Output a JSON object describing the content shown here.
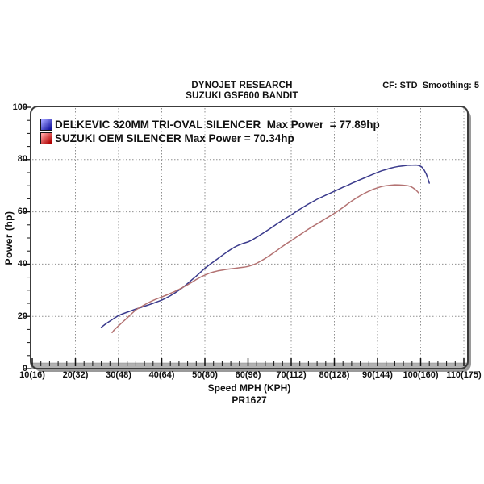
{
  "header": {
    "line1": "DYNOJET RESEARCH",
    "line2": "SUZUKI GSF600 BANDIT",
    "right": "CF: STD  Smoothing: 5"
  },
  "legend": [
    {
      "label": "DELKEVIC 320MM TRI-OVAL SILENCER  Max Power  = 77.89hp",
      "swatch_light": "#9e9eff",
      "swatch_dark": "#1414a0",
      "line_color": "#3a3a8c"
    },
    {
      "label": "SUZUKI OEM SILENCER Max Power = 70.34hp",
      "swatch_light": "#ff9e9e",
      "swatch_dark": "#b00000",
      "line_color": "#b37272"
    }
  ],
  "footer": {
    "xlabel": "Speed MPH (KPH)",
    "run_id": "PR1627"
  },
  "chart_data": {
    "type": "line",
    "title": "SUZUKI GSF600 BANDIT",
    "subtitle": "DYNOJET RESEARCH",
    "correction": "CF: STD",
    "smoothing": 5,
    "xlabel": "Speed MPH (KPH)",
    "ylabel": "Power (hp)",
    "xlim": [
      10,
      111
    ],
    "ylim": [
      0,
      100
    ],
    "x_major_ticks": [
      10,
      20,
      30,
      40,
      50,
      60,
      70,
      80,
      90,
      100,
      110
    ],
    "x_tick_labels": [
      "10(16)",
      "20(32)",
      "30(48)",
      "40(64)",
      "50(80)",
      "60(96)",
      "70(112)",
      "80(128)",
      "90(144)",
      "100(160)",
      "110(175)"
    ],
    "x_minor_step": 2,
    "y_major_ticks": [
      0,
      20,
      40,
      60,
      80,
      100
    ],
    "y_minor_step": 5,
    "grid": {
      "style": "dashed",
      "color": "#8f8f8f",
      "h_lines": [
        20,
        40,
        60,
        80
      ],
      "v_lines": [
        20,
        30,
        40,
        50,
        60,
        70,
        80,
        90,
        100,
        110
      ]
    },
    "series": [
      {
        "name": "DELKEVIC 320MM TRI-OVAL SILENCER",
        "max_power_hp": 77.89,
        "color": "#3a3a8c",
        "points": [
          [
            26,
            15.8
          ],
          [
            27,
            17.1
          ],
          [
            28,
            18.2
          ],
          [
            29,
            19.3
          ],
          [
            30,
            20.3
          ],
          [
            31,
            21.0
          ],
          [
            32,
            21.6
          ],
          [
            33,
            22.2
          ],
          [
            34,
            22.8
          ],
          [
            35,
            23.3
          ],
          [
            36,
            23.9
          ],
          [
            37,
            24.4
          ],
          [
            38,
            25.0
          ],
          [
            39,
            25.6
          ],
          [
            40,
            26.2
          ],
          [
            41,
            27.0
          ],
          [
            42,
            27.9
          ],
          [
            43,
            28.9
          ],
          [
            44,
            30.0
          ],
          [
            45,
            31.2
          ],
          [
            46,
            32.6
          ],
          [
            47,
            34.0
          ],
          [
            48,
            35.4
          ],
          [
            49,
            36.9
          ],
          [
            50,
            38.4
          ],
          [
            51,
            39.7
          ],
          [
            52,
            40.9
          ],
          [
            53,
            42.1
          ],
          [
            54,
            43.3
          ],
          [
            55,
            44.5
          ],
          [
            56,
            45.6
          ],
          [
            57,
            46.6
          ],
          [
            58,
            47.4
          ],
          [
            59,
            48.0
          ],
          [
            60,
            48.5
          ],
          [
            61,
            49.3
          ],
          [
            62,
            50.3
          ],
          [
            63,
            51.3
          ],
          [
            64,
            52.4
          ],
          [
            65,
            53.5
          ],
          [
            66,
            54.6
          ],
          [
            67,
            55.7
          ],
          [
            68,
            56.8
          ],
          [
            69,
            57.8
          ],
          [
            70,
            58.8
          ],
          [
            71,
            59.9
          ],
          [
            72,
            61.0
          ],
          [
            73,
            62.0
          ],
          [
            74,
            63.0
          ],
          [
            75,
            63.9
          ],
          [
            76,
            64.8
          ],
          [
            77,
            65.6
          ],
          [
            78,
            66.4
          ],
          [
            79,
            67.1
          ],
          [
            80,
            67.9
          ],
          [
            81,
            68.6
          ],
          [
            82,
            69.4
          ],
          [
            83,
            70.1
          ],
          [
            84,
            70.9
          ],
          [
            85,
            71.6
          ],
          [
            86,
            72.3
          ],
          [
            87,
            73.0
          ],
          [
            88,
            73.7
          ],
          [
            89,
            74.4
          ],
          [
            90,
            75.1
          ],
          [
            91,
            75.7
          ],
          [
            92,
            76.2
          ],
          [
            93,
            76.7
          ],
          [
            94,
            77.1
          ],
          [
            95,
            77.4
          ],
          [
            96,
            77.6
          ],
          [
            97,
            77.8
          ],
          [
            98,
            77.85
          ],
          [
            99,
            77.89
          ],
          [
            99.7,
            77.7
          ],
          [
            100.3,
            77.1
          ],
          [
            100.8,
            76.0
          ],
          [
            101.3,
            74.4
          ],
          [
            101.7,
            72.6
          ],
          [
            102,
            71.0
          ]
        ]
      },
      {
        "name": "SUZUKI OEM SILENCER",
        "max_power_hp": 70.34,
        "color": "#b37272",
        "points": [
          [
            28.5,
            13.8
          ],
          [
            29,
            14.8
          ],
          [
            30,
            16.4
          ],
          [
            31,
            17.9
          ],
          [
            32,
            19.4
          ],
          [
            33,
            21.0
          ],
          [
            34,
            22.5
          ],
          [
            35,
            23.5
          ],
          [
            36,
            24.4
          ],
          [
            37,
            25.3
          ],
          [
            38,
            26.1
          ],
          [
            39,
            26.8
          ],
          [
            40,
            27.4
          ],
          [
            41,
            28.1
          ],
          [
            42,
            28.8
          ],
          [
            43,
            29.5
          ],
          [
            44,
            30.3
          ],
          [
            45,
            31.2
          ],
          [
            46,
            32.1
          ],
          [
            47,
            33.1
          ],
          [
            48,
            34.1
          ],
          [
            49,
            35.0
          ],
          [
            50,
            35.8
          ],
          [
            51,
            36.5
          ],
          [
            52,
            37.0
          ],
          [
            53,
            37.4
          ],
          [
            54,
            37.7
          ],
          [
            55,
            38.0
          ],
          [
            56,
            38.2
          ],
          [
            57,
            38.4
          ],
          [
            58,
            38.6
          ],
          [
            59,
            38.8
          ],
          [
            60,
            39.1
          ],
          [
            61,
            39.6
          ],
          [
            62,
            40.3
          ],
          [
            63,
            41.2
          ],
          [
            64,
            42.2
          ],
          [
            65,
            43.3
          ],
          [
            66,
            44.4
          ],
          [
            67,
            45.6
          ],
          [
            68,
            46.8
          ],
          [
            69,
            47.9
          ],
          [
            70,
            49.0
          ],
          [
            71,
            50.1
          ],
          [
            72,
            51.2
          ],
          [
            73,
            52.3
          ],
          [
            74,
            53.4
          ],
          [
            75,
            54.4
          ],
          [
            76,
            55.4
          ],
          [
            77,
            56.4
          ],
          [
            78,
            57.4
          ],
          [
            79,
            58.4
          ],
          [
            80,
            59.4
          ],
          [
            81,
            60.5
          ],
          [
            82,
            61.7
          ],
          [
            83,
            62.9
          ],
          [
            84,
            64.1
          ],
          [
            85,
            65.2
          ],
          [
            86,
            66.2
          ],
          [
            87,
            67.1
          ],
          [
            88,
            67.9
          ],
          [
            89,
            68.6
          ],
          [
            90,
            69.2
          ],
          [
            91,
            69.7
          ],
          [
            92,
            70.0
          ],
          [
            93,
            70.2
          ],
          [
            94,
            70.34
          ],
          [
            95,
            70.3
          ],
          [
            96,
            70.2
          ],
          [
            97,
            70.0
          ],
          [
            97.7,
            69.7
          ],
          [
            98.3,
            69.1
          ],
          [
            99,
            68.2
          ],
          [
            99.5,
            67.3
          ]
        ]
      }
    ],
    "frame": {
      "border_color": "#3c3c3c",
      "shadow_color": "#9a9a9a",
      "axis_bar_color": "#b2b2b2"
    }
  }
}
